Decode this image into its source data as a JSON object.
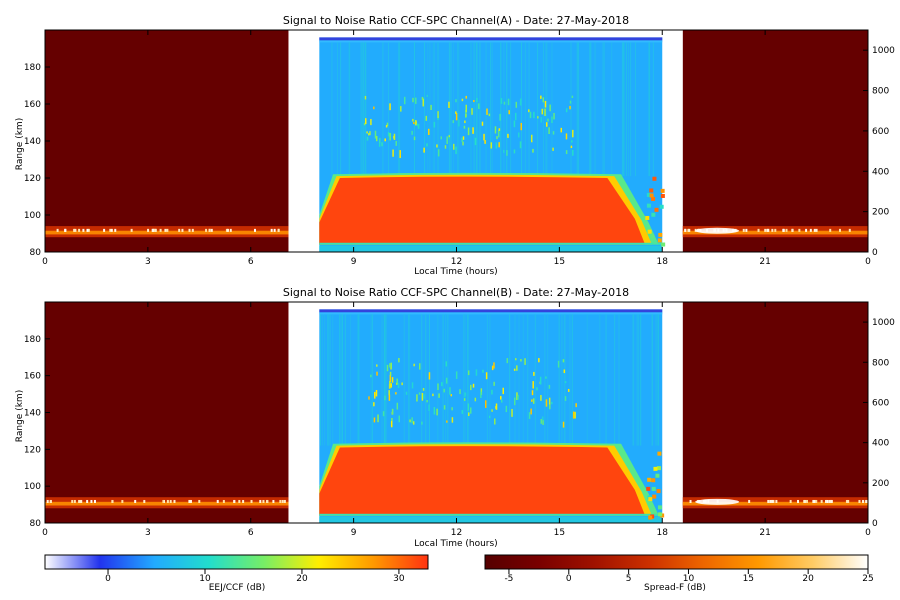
{
  "chart_data": [
    {
      "type": "heatmap",
      "title": "Signal to Noise Ratio CCF-SPC Channel(A) - Date: 27-May-2018",
      "xlabel": "Local Time (hours)",
      "ylabel": "Range (km)",
      "xlim": [
        0,
        24
      ],
      "ylim": [
        80,
        200
      ],
      "right_ylim": [
        0,
        1100
      ],
      "x_ticks": [
        "0",
        "3",
        "6",
        "9",
        "12",
        "15",
        "18",
        "21",
        "0"
      ],
      "y_ticks": [
        "80",
        "100",
        "120",
        "140",
        "160",
        "180"
      ],
      "right_ticks": [
        "0",
        "200",
        "400",
        "600",
        "800",
        "1000"
      ],
      "night_spread_f": {
        "layer_km": [
          88,
          94
        ],
        "background_dB": -5
      },
      "day_snr": {
        "time_h": [
          8,
          18
        ],
        "strong_layer_km": [
          84,
          121
        ],
        "peak_dB": 32,
        "background_dB": 5,
        "echo_band_km": [
          135,
          165
        ]
      }
    },
    {
      "type": "heatmap",
      "title": "Signal to Noise Ratio CCF-SPC Channel(B) - Date: 27-May-2018",
      "xlabel": "Local Time (hours)",
      "ylabel": "Range (km)",
      "xlim": [
        0,
        24
      ],
      "ylim": [
        80,
        200
      ],
      "right_ylim": [
        0,
        1100
      ],
      "x_ticks": [
        "0",
        "3",
        "6",
        "9",
        "12",
        "15",
        "18",
        "21",
        "0"
      ],
      "y_ticks": [
        "80",
        "100",
        "120",
        "140",
        "160",
        "180"
      ],
      "right_ticks": [
        "0",
        "200",
        "400",
        "600",
        "800",
        "1000"
      ],
      "night_spread_f": {
        "layer_km": [
          88,
          94
        ],
        "background_dB": -5
      },
      "day_snr": {
        "time_h": [
          8,
          18
        ],
        "strong_layer_km": [
          84,
          122
        ],
        "peak_dB": 32,
        "background_dB": 5,
        "echo_band_km": [
          135,
          170
        ]
      }
    }
  ],
  "colorbars": [
    {
      "label": "EEJ/CCF (dB)",
      "ticks": [
        "0",
        "10",
        "20",
        "30"
      ],
      "range": [
        -6.5,
        33
      ],
      "colors": [
        "#ffffff",
        "#2233ee",
        "#22aaff",
        "#22ddcc",
        "#77ee66",
        "#ffee00",
        "#ff9900",
        "#ff3311"
      ]
    },
    {
      "label": "Spread-F (dB)",
      "ticks": [
        "-5",
        "0",
        "5",
        "10",
        "15",
        "20",
        "25"
      ],
      "range": [
        -7,
        25
      ],
      "colors": [
        "#550000",
        "#7a0000",
        "#a01200",
        "#cc3000",
        "#ee6600",
        "#ff9900",
        "#ffcc66",
        "#ffffff"
      ]
    }
  ]
}
